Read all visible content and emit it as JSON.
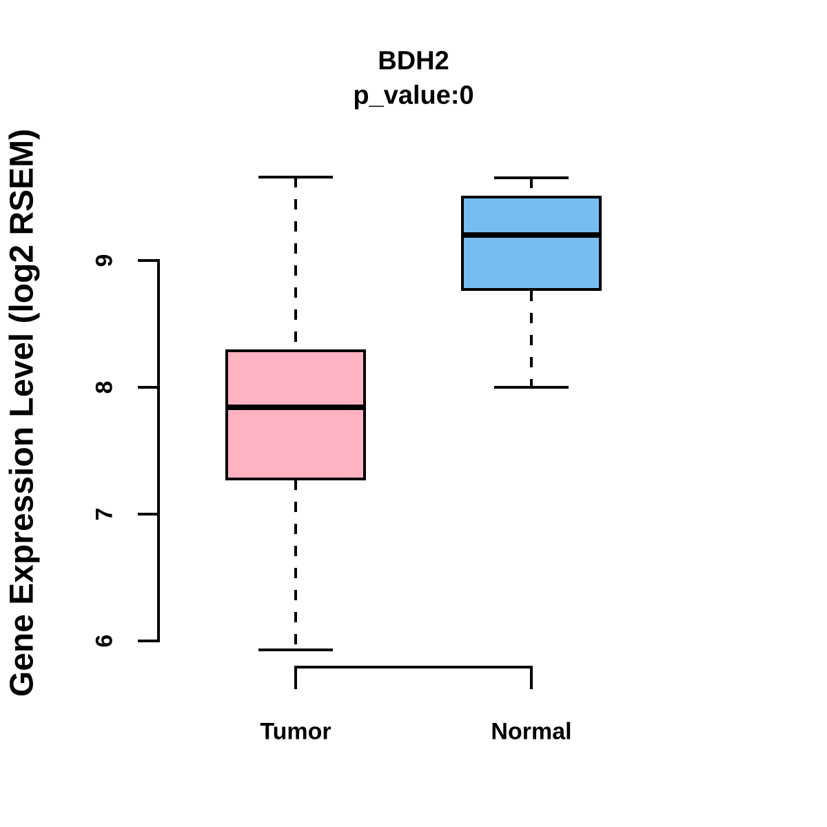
{
  "title": "BDH2",
  "subtitle": "p_value:0",
  "y_axis": {
    "label": "Gene Expression Level (log2 RSEM)",
    "ticks": [
      6,
      7,
      8,
      9
    ]
  },
  "x_axis": {
    "categories": [
      "Tumor",
      "Normal"
    ]
  },
  "colors": {
    "tumor_fill": "#FFB3C2",
    "normal_fill": "#76BDF2",
    "line": "#000000",
    "background": "#FFFFFF"
  },
  "chart_data": {
    "type": "boxplot",
    "title": "BDH2",
    "subtitle": "p_value:0",
    "xlabel": "",
    "ylabel": "Gene Expression Level (log2 RSEM)",
    "categories": [
      "Tumor",
      "Normal"
    ],
    "y_ticks": [
      6,
      7,
      8,
      9
    ],
    "ylim": [
      5.7,
      9.85
    ],
    "grid": false,
    "legend": "none",
    "whisker_line_style": "dashed",
    "series": [
      {
        "name": "Tumor",
        "fill_color": "#FFB3C2",
        "whisker_low": 5.93,
        "q1": 7.27,
        "median": 7.84,
        "q3": 8.3,
        "whisker_high": 9.66
      },
      {
        "name": "Normal",
        "fill_color": "#76BDF2",
        "whisker_low": 8.0,
        "q1": 8.76,
        "median": 9.2,
        "q3": 9.51,
        "whisker_high": 9.65
      }
    ]
  }
}
